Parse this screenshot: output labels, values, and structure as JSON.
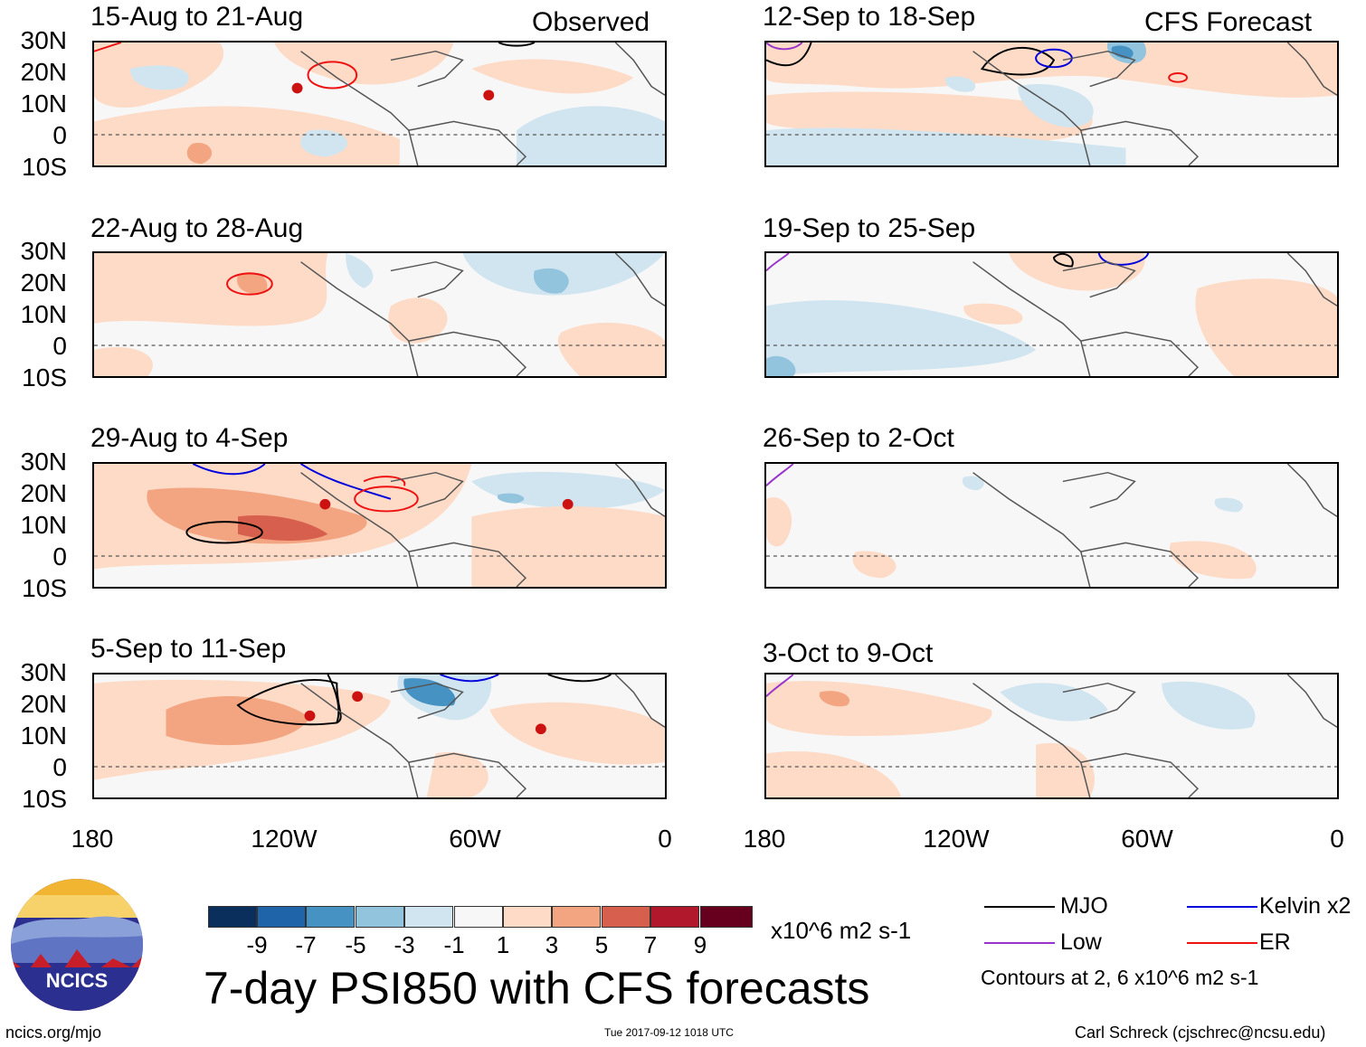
{
  "panels_left": [
    {
      "title": "15-Aug to 21-Aug",
      "corner": "Observed"
    },
    {
      "title": "22-Aug to 28-Aug",
      "corner": ""
    },
    {
      "title": "29-Aug to 4-Sep",
      "corner": ""
    },
    {
      "title": "5-Sep to 11-Sep",
      "corner": ""
    }
  ],
  "panels_right": [
    {
      "title": "12-Sep to 18-Sep",
      "corner": "CFS Forecast"
    },
    {
      "title": "19-Sep to 25-Sep",
      "corner": ""
    },
    {
      "title": "26-Sep to 2-Oct",
      "corner": ""
    },
    {
      "title": "3-Oct to 9-Oct",
      "corner": ""
    }
  ],
  "lat_labels": [
    "30N",
    "20N",
    "10N",
    "0",
    "10S"
  ],
  "lon_labels": [
    "180",
    "120W",
    "60W",
    "0"
  ],
  "colorbar": {
    "colors": [
      "#0a2f5c",
      "#1f63a8",
      "#4592c3",
      "#92c4de",
      "#d1e5f0",
      "#f7f7f7",
      "#fddbc7",
      "#f3a582",
      "#d6604d",
      "#b2182b",
      "#67001f"
    ],
    "ticks": [
      "-9",
      "-7",
      "-5",
      "-3",
      "-1",
      "1",
      "3",
      "5",
      "7",
      "9"
    ],
    "units": "x10^6 m2 s-1"
  },
  "legend": {
    "mjo": {
      "label": "MJO",
      "color": "#000000"
    },
    "kelvin": {
      "label": "Kelvin x2",
      "color": "#0000dd"
    },
    "low": {
      "label": "Low",
      "color": "#9933cc"
    },
    "er": {
      "label": "ER",
      "color": "#ee1111"
    },
    "contours_note": "Contours at 2, 6 x10^6 m2 s-1"
  },
  "main_title": "7-day PSI850 with CFS forecasts",
  "logo_text": "NCICS",
  "footer": {
    "url": "ncics.org/mjo",
    "timestamp": "Tue 2017-09-12 1018 UTC",
    "credit": "Carl Schreck (cjschrec@ncsu.edu)"
  }
}
